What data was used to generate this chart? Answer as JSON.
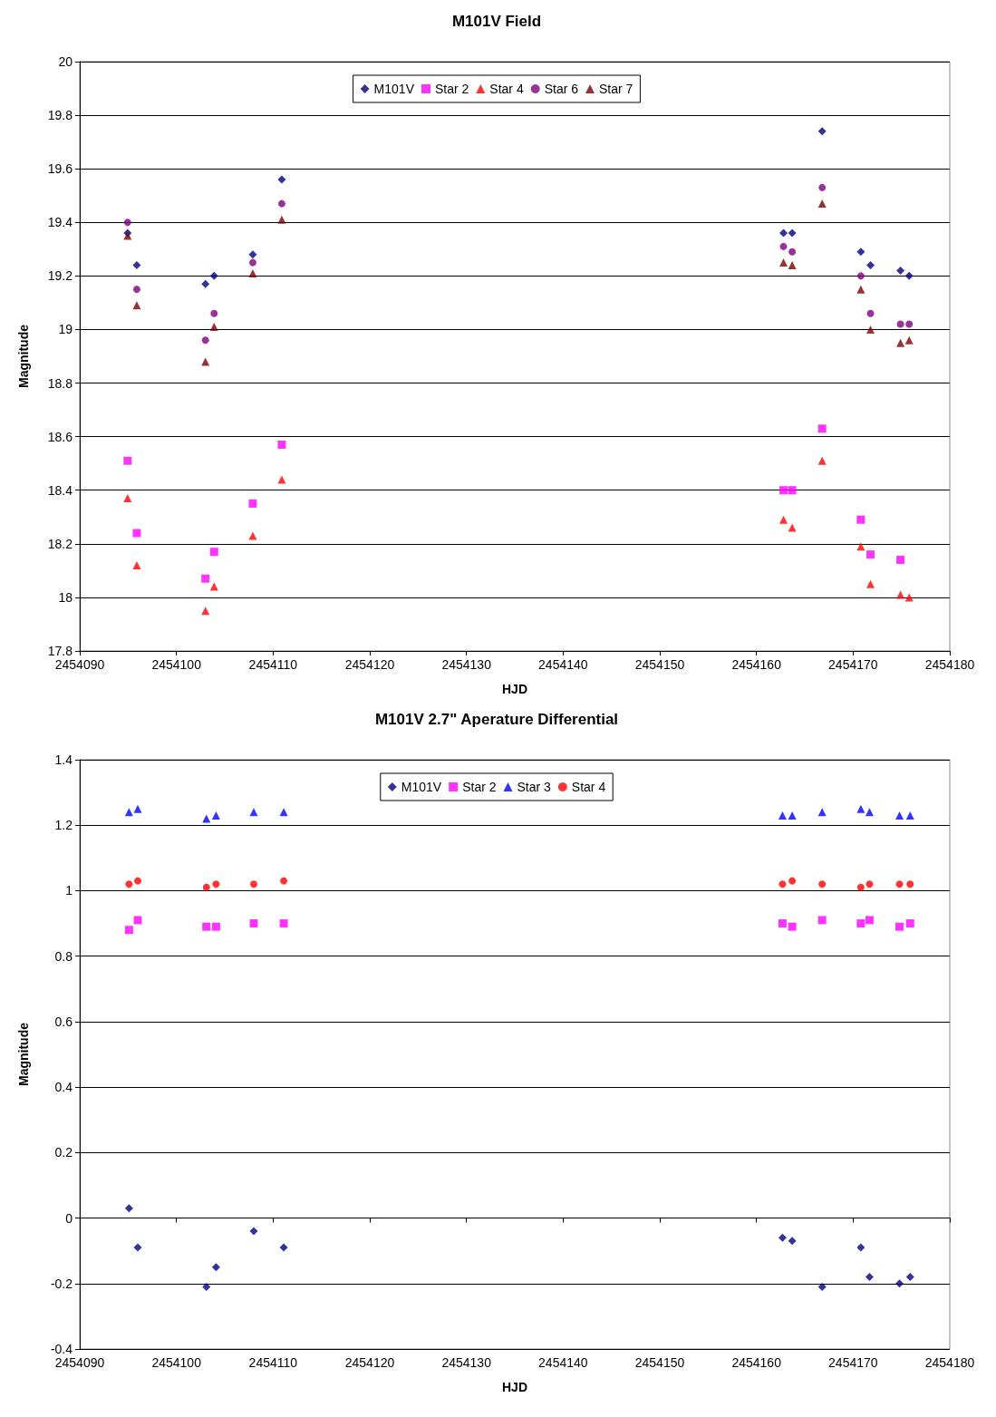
{
  "chart_data": [
    {
      "type": "scatter",
      "title": "M101V Field",
      "xlabel": "HJD",
      "ylabel": "Magnitude",
      "xlim": [
        2454090,
        2454180
      ],
      "xticks": [
        2454090,
        2454100,
        2454110,
        2454120,
        2454130,
        2454140,
        2454150,
        2454160,
        2454170,
        2454180
      ],
      "ylim": [
        17.8,
        20
      ],
      "yticks": [
        17.8,
        18,
        18.2,
        18.4,
        18.6,
        18.8,
        19,
        19.2,
        19.4,
        19.6,
        19.8,
        20
      ],
      "grid": "y",
      "legend": "top",
      "series": [
        {
          "name": "M101V",
          "color": "#000080",
          "marker": "diamond",
          "x": [
            2454094.95,
            2454095.9,
            2454103.0,
            2454103.9,
            2454107.9,
            2454110.9,
            2454162.8,
            2454163.7,
            2454166.8,
            2454170.8,
            2454171.8,
            2454174.9,
            2454175.8
          ],
          "values": [
            19.36,
            19.24,
            19.17,
            19.2,
            19.28,
            19.56,
            19.36,
            19.36,
            19.74,
            19.29,
            19.24,
            19.22,
            19.2
          ]
        },
        {
          "name": "Star 2",
          "color": "#ff00ff",
          "marker": "square",
          "x": [
            2454094.95,
            2454095.9,
            2454103.0,
            2454103.9,
            2454107.9,
            2454110.9,
            2454162.8,
            2454163.7,
            2454166.8,
            2454170.8,
            2454171.8,
            2454174.9
          ],
          "values": [
            18.51,
            18.24,
            18.07,
            18.17,
            18.35,
            18.57,
            18.4,
            18.4,
            18.63,
            18.29,
            18.16,
            18.14
          ]
        },
        {
          "name": "Star 4",
          "color": "#ff0000",
          "marker": "triangle",
          "x": [
            2454094.95,
            2454095.9,
            2454103.0,
            2454103.9,
            2454107.9,
            2454110.9,
            2454162.8,
            2454163.7,
            2454166.8,
            2454170.8,
            2454171.8,
            2454174.9,
            2454175.8
          ],
          "values": [
            18.37,
            18.12,
            17.95,
            18.04,
            18.23,
            18.44,
            18.29,
            18.26,
            18.51,
            18.19,
            18.05,
            18.01,
            18.0
          ]
        },
        {
          "name": "Star 6",
          "color": "#800080",
          "marker": "circle",
          "x": [
            2454094.95,
            2454095.9,
            2454103.0,
            2454103.9,
            2454107.9,
            2454110.9,
            2454162.8,
            2454163.7,
            2454166.8,
            2454170.8,
            2454171.8,
            2454174.9,
            2454175.8
          ],
          "values": [
            19.4,
            19.15,
            18.96,
            19.06,
            19.25,
            19.47,
            19.31,
            19.29,
            19.53,
            19.2,
            19.06,
            19.02,
            19.02
          ]
        },
        {
          "name": "Star 7",
          "color": "#800000",
          "marker": "triangle",
          "x": [
            2454094.95,
            2454095.9,
            2454103.0,
            2454103.9,
            2454107.9,
            2454110.9,
            2454162.8,
            2454163.7,
            2454166.8,
            2454170.8,
            2454171.8,
            2454174.9,
            2454175.8
          ],
          "values": [
            19.35,
            19.09,
            18.88,
            19.01,
            19.21,
            19.41,
            19.25,
            19.24,
            19.47,
            19.15,
            19.0,
            18.95,
            18.96
          ]
        }
      ]
    },
    {
      "type": "scatter",
      "title": "M101V 2.7\" Aperature Differential",
      "xlabel": "HJD",
      "ylabel": "Magnitude",
      "xlim": [
        2454090,
        2454180
      ],
      "xticks": [
        2454090,
        2454100,
        2454110,
        2454120,
        2454130,
        2454140,
        2454150,
        2454160,
        2454170,
        2454180
      ],
      "ylim": [
        -0.4,
        1.4
      ],
      "yticks": [
        -0.4,
        -0.2,
        0,
        0.2,
        0.4,
        0.6,
        0.8,
        1,
        1.2,
        1.4
      ],
      "grid": "y",
      "legend": "top",
      "series": [
        {
          "name": "M101V",
          "color": "#000080",
          "marker": "diamond",
          "x": [
            2454095.1,
            2454096.0,
            2454103.1,
            2454104.1,
            2454108.0,
            2454111.1,
            2454162.7,
            2454163.7,
            2454166.8,
            2454170.8,
            2454171.7,
            2454174.8,
            2454175.9
          ],
          "values": [
            0.03,
            -0.09,
            -0.21,
            -0.15,
            -0.04,
            -0.09,
            -0.06,
            -0.07,
            -0.21,
            -0.09,
            -0.18,
            -0.2,
            -0.18
          ]
        },
        {
          "name": "Star 2",
          "color": "#ff00ff",
          "marker": "square",
          "x": [
            2454095.1,
            2454096.0,
            2454103.1,
            2454104.1,
            2454108.0,
            2454111.1,
            2454162.7,
            2454163.7,
            2454166.8,
            2454170.8,
            2454171.7,
            2454174.8,
            2454175.9
          ],
          "values": [
            0.88,
            0.91,
            0.89,
            0.89,
            0.9,
            0.9,
            0.9,
            0.89,
            0.91,
            0.9,
            0.91,
            0.89,
            0.9
          ]
        },
        {
          "name": "Star 3",
          "color": "#0000ff",
          "marker": "triangle",
          "x": [
            2454095.1,
            2454096.0,
            2454103.1,
            2454104.1,
            2454108.0,
            2454111.1,
            2454162.7,
            2454163.7,
            2454166.8,
            2454170.8,
            2454171.7,
            2454174.8,
            2454175.9
          ],
          "values": [
            1.24,
            1.25,
            1.22,
            1.23,
            1.24,
            1.24,
            1.23,
            1.23,
            1.24,
            1.25,
            1.24,
            1.23,
            1.23
          ]
        },
        {
          "name": "Star 4",
          "color": "#ff0000",
          "marker": "circle",
          "x": [
            2454095.1,
            2454096.0,
            2454103.1,
            2454104.1,
            2454108.0,
            2454111.1,
            2454162.7,
            2454163.7,
            2454166.8,
            2454170.8,
            2454171.7,
            2454174.8,
            2454175.9
          ],
          "values": [
            1.02,
            1.03,
            1.01,
            1.02,
            1.02,
            1.03,
            1.02,
            1.03,
            1.02,
            1.01,
            1.02,
            1.02,
            1.02
          ]
        }
      ]
    }
  ]
}
